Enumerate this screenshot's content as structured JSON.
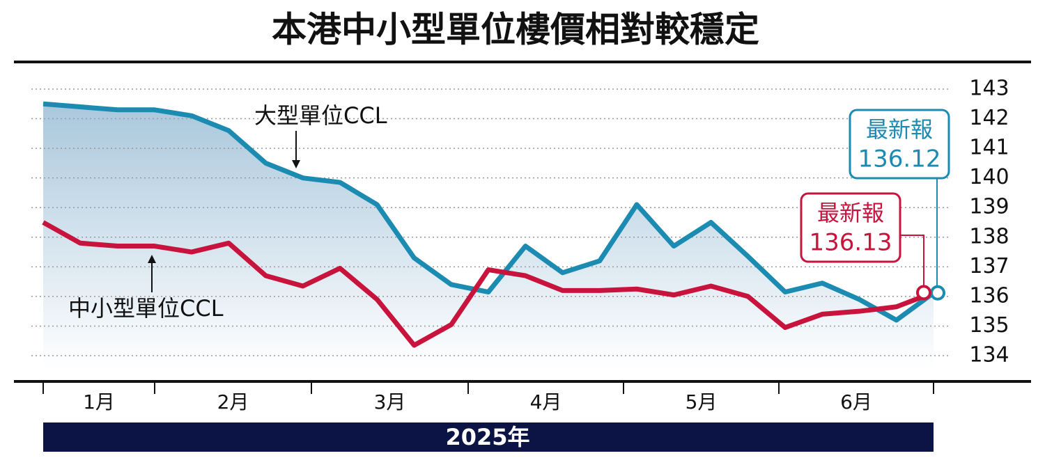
{
  "chart_data": {
    "type": "line",
    "title": "本港中小型單位樓價相對較穩定",
    "x_axis_labels": [
      "1月",
      "2月",
      "3月",
      "4月",
      "5月",
      "6月"
    ],
    "year_label": "2025年",
    "series": [
      {
        "name": "大型單位CCL",
        "color": "#1b8bb2",
        "values": [
          142.5,
          142.4,
          142.3,
          142.3,
          142.1,
          141.6,
          140.5,
          140.0,
          139.85,
          139.1,
          137.3,
          136.4,
          136.15,
          137.7,
          136.8,
          137.2,
          139.1,
          137.7,
          138.5,
          137.35,
          136.15,
          136.45,
          135.9,
          135.2,
          136.12
        ]
      },
      {
        "name": "中小型單位CCL",
        "color": "#c8143c",
        "values": [
          138.5,
          137.8,
          137.7,
          137.7,
          137.5,
          137.8,
          136.7,
          136.35,
          136.95,
          135.9,
          134.35,
          135.05,
          136.9,
          136.7,
          136.2,
          136.2,
          136.25,
          136.05,
          136.35,
          136.0,
          134.95,
          135.4,
          135.5,
          135.65,
          136.13
        ]
      }
    ],
    "annotations": [
      {
        "text": "最新報",
        "value": 136.12,
        "series": 0
      },
      {
        "text": "最新報",
        "value": 136.13,
        "series": 1
      }
    ],
    "ylim": [
      134,
      143
    ],
    "yticks": [
      134,
      135,
      136,
      137,
      138,
      139,
      140,
      141,
      142,
      143
    ],
    "grid": true
  }
}
